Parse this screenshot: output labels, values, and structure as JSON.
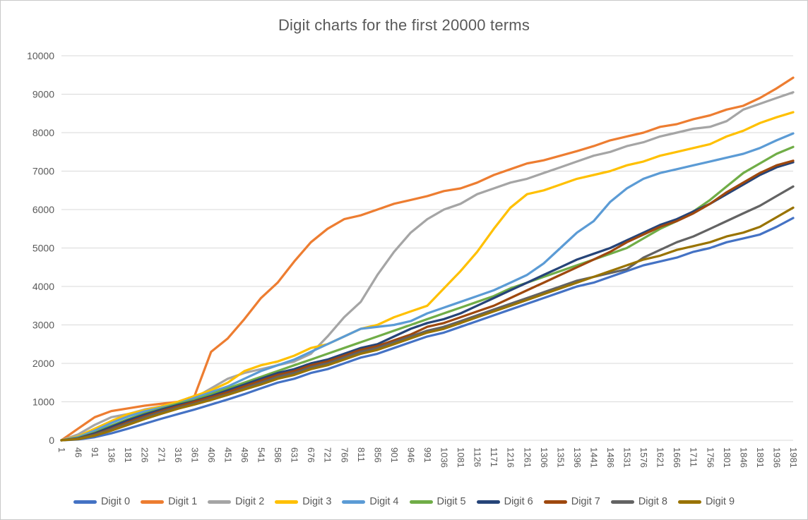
{
  "chart_data": {
    "type": "line",
    "title": "Digit charts for the first 20000 terms",
    "xlabel": "",
    "ylabel": "",
    "ylim": [
      0,
      10000
    ],
    "ytick_step": 1000,
    "y_ticks": [
      "0",
      "1000",
      "2000",
      "3000",
      "4000",
      "5000",
      "6000",
      "7000",
      "8000",
      "9000",
      "10000"
    ],
    "grid": "horizontal-only",
    "legend_position": "bottom",
    "x_label_rotation_deg": 90,
    "categories": [
      "1",
      "46",
      "91",
      "136",
      "181",
      "226",
      "271",
      "316",
      "361",
      "406",
      "451",
      "496",
      "541",
      "586",
      "631",
      "676",
      "721",
      "766",
      "811",
      "856",
      "901",
      "946",
      "991",
      "1036",
      "1081",
      "1126",
      "1171",
      "1216",
      "1261",
      "1306",
      "1351",
      "1396",
      "1441",
      "1486",
      "1531",
      "1576",
      "1621",
      "1666",
      "1711",
      "1756",
      "1801",
      "1846",
      "1891",
      "1936",
      "1981"
    ],
    "series": [
      {
        "name": "Digit 0",
        "color": "#4472C4",
        "values": [
          0,
          20,
          80,
          180,
          300,
          430,
          560,
          680,
          800,
          930,
          1060,
          1200,
          1350,
          1500,
          1600,
          1750,
          1850,
          2000,
          2150,
          2250,
          2400,
          2550,
          2700,
          2800,
          2950,
          3100,
          3250,
          3400,
          3550,
          3700,
          3850,
          4000,
          4100,
          4250,
          4400,
          4550,
          4650,
          4750,
          4900,
          5000,
          5150,
          5250,
          5350,
          5550,
          5780
        ]
      },
      {
        "name": "Digit 1",
        "color": "#ED7D31",
        "values": [
          0,
          300,
          600,
          760,
          830,
          900,
          950,
          1000,
          1150,
          2300,
          2650,
          3150,
          3700,
          4100,
          4650,
          5150,
          5500,
          5750,
          5850,
          6000,
          6150,
          6250,
          6350,
          6480,
          6550,
          6700,
          6900,
          7050,
          7200,
          7280,
          7400,
          7520,
          7650,
          7800,
          7900,
          8000,
          8150,
          8220,
          8350,
          8450,
          8600,
          8700,
          8900,
          9150,
          9430
        ]
      },
      {
        "name": "Digit 2",
        "color": "#A5A5A5",
        "values": [
          0,
          150,
          400,
          600,
          680,
          800,
          880,
          980,
          1100,
          1350,
          1600,
          1750,
          1850,
          1950,
          2050,
          2250,
          2700,
          3200,
          3600,
          4300,
          4900,
          5400,
          5750,
          6000,
          6150,
          6400,
          6550,
          6700,
          6800,
          6950,
          7100,
          7250,
          7400,
          7500,
          7650,
          7750,
          7900,
          8000,
          8100,
          8150,
          8300,
          8600,
          8750,
          8900,
          9050
        ]
      },
      {
        "name": "Digit 3",
        "color": "#FFC000",
        "values": [
          0,
          100,
          300,
          500,
          680,
          780,
          880,
          1000,
          1150,
          1300,
          1500,
          1800,
          1950,
          2050,
          2200,
          2400,
          2500,
          2700,
          2900,
          3000,
          3200,
          3350,
          3500,
          3950,
          4400,
          4900,
          5500,
          6050,
          6400,
          6500,
          6650,
          6800,
          6900,
          7000,
          7150,
          7250,
          7400,
          7500,
          7600,
          7700,
          7900,
          8050,
          8250,
          8400,
          8530
        ]
      },
      {
        "name": "Digit 4",
        "color": "#5B9BD5",
        "values": [
          0,
          80,
          250,
          450,
          620,
          750,
          850,
          950,
          1100,
          1250,
          1400,
          1600,
          1800,
          1950,
          2100,
          2300,
          2500,
          2700,
          2900,
          2950,
          3000,
          3100,
          3300,
          3450,
          3600,
          3750,
          3900,
          4100,
          4300,
          4600,
          5000,
          5400,
          5700,
          6200,
          6550,
          6800,
          6950,
          7050,
          7150,
          7250,
          7350,
          7450,
          7600,
          7800,
          7980
        ]
      },
      {
        "name": "Digit 5",
        "color": "#70AD47",
        "values": [
          0,
          60,
          200,
          380,
          550,
          700,
          820,
          950,
          1050,
          1200,
          1350,
          1500,
          1650,
          1800,
          1950,
          2100,
          2250,
          2400,
          2550,
          2700,
          2850,
          3000,
          3150,
          3300,
          3450,
          3600,
          3750,
          3950,
          4100,
          4250,
          4400,
          4550,
          4700,
          4850,
          5000,
          5250,
          5500,
          5700,
          5950,
          6250,
          6600,
          6950,
          7200,
          7450,
          7630
        ]
      },
      {
        "name": "Digit 6",
        "color": "#264478",
        "values": [
          0,
          50,
          180,
          350,
          520,
          670,
          800,
          920,
          1020,
          1150,
          1300,
          1450,
          1600,
          1750,
          1850,
          2000,
          2100,
          2250,
          2400,
          2500,
          2700,
          2900,
          3050,
          3150,
          3300,
          3500,
          3700,
          3900,
          4100,
          4300,
          4500,
          4700,
          4850,
          5000,
          5200,
          5400,
          5600,
          5750,
          5950,
          6150,
          6400,
          6650,
          6900,
          7100,
          7230
        ]
      },
      {
        "name": "Digit 7",
        "color": "#9E480E",
        "values": [
          0,
          40,
          150,
          300,
          470,
          620,
          760,
          880,
          1000,
          1120,
          1250,
          1400,
          1550,
          1700,
          1800,
          1950,
          2050,
          2200,
          2350,
          2450,
          2600,
          2750,
          2950,
          3050,
          3200,
          3350,
          3500,
          3700,
          3900,
          4100,
          4300,
          4500,
          4700,
          4900,
          5150,
          5350,
          5550,
          5700,
          5900,
          6150,
          6450,
          6700,
          6950,
          7150,
          7270
        ]
      },
      {
        "name": "Digit 8",
        "color": "#636363",
        "values": [
          0,
          40,
          140,
          280,
          440,
          590,
          730,
          850,
          950,
          1080,
          1200,
          1350,
          1500,
          1650,
          1750,
          1900,
          2000,
          2150,
          2300,
          2400,
          2550,
          2700,
          2850,
          2950,
          3100,
          3250,
          3400,
          3550,
          3700,
          3850,
          4000,
          4150,
          4250,
          4350,
          4450,
          4750,
          4950,
          5150,
          5300,
          5500,
          5700,
          5900,
          6100,
          6350,
          6600
        ]
      },
      {
        "name": "Digit 9",
        "color": "#997300",
        "values": [
          0,
          30,
          120,
          250,
          400,
          550,
          690,
          820,
          930,
          1050,
          1180,
          1320,
          1450,
          1600,
          1700,
          1850,
          1950,
          2100,
          2250,
          2350,
          2500,
          2650,
          2800,
          2900,
          3050,
          3200,
          3350,
          3500,
          3650,
          3800,
          3950,
          4100,
          4250,
          4400,
          4550,
          4700,
          4800,
          4950,
          5050,
          5150,
          5300,
          5400,
          5550,
          5800,
          6050
        ]
      }
    ],
    "colors": {
      "title_text": "#595959",
      "axis_text": "#595959",
      "gridline": "#D9D9D9",
      "chart_border": "#C9C9C9",
      "background": "#FFFFFF"
    }
  }
}
